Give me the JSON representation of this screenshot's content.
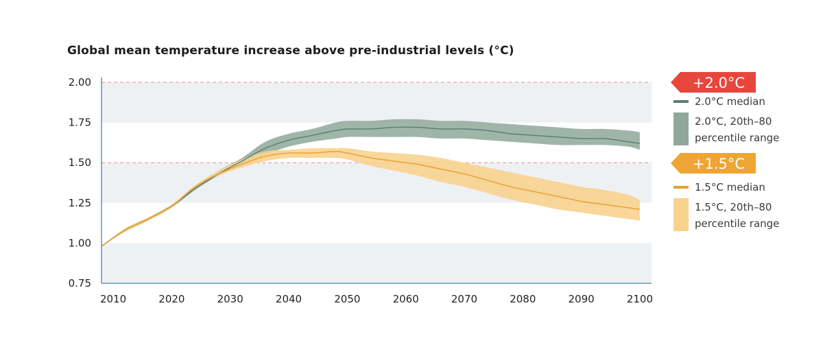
{
  "chart_data": {
    "type": "area",
    "title": "Global mean temperature increase above pre-industrial levels (°C)",
    "xlim": [
      2008,
      2102
    ],
    "ylim": [
      0.75,
      2.0
    ],
    "x_ticks": [
      2010,
      2020,
      2030,
      2040,
      2050,
      2060,
      2070,
      2080,
      2090,
      2100
    ],
    "y_ticks": [
      "0.75",
      "1.00",
      "1.25",
      "1.50",
      "1.75",
      "2.00"
    ],
    "y_tick_values": [
      0.75,
      1.0,
      1.25,
      1.5,
      1.75,
      2.0
    ],
    "grid": "alternating horizontal bands",
    "reference_lines": [
      {
        "y": 2.0,
        "label": "+2.0°C",
        "color": "#e8463d"
      },
      {
        "y": 1.5,
        "label": "+1.5°C",
        "color": "#eea533"
      }
    ],
    "x": [
      2008,
      2012,
      2016,
      2020,
      2024,
      2028,
      2032,
      2036,
      2040,
      2044,
      2048,
      2050,
      2054,
      2058,
      2062,
      2066,
      2070,
      2074,
      2078,
      2082,
      2086,
      2090,
      2094,
      2098,
      2100
    ],
    "series": [
      {
        "name": "2.0°C median",
        "color": "#587e6e",
        "band_color": "#8fa89a",
        "median": [
          0.98,
          1.08,
          1.15,
          1.23,
          1.34,
          1.43,
          1.51,
          1.59,
          1.64,
          1.67,
          1.7,
          1.71,
          1.71,
          1.72,
          1.72,
          1.71,
          1.71,
          1.7,
          1.68,
          1.67,
          1.66,
          1.65,
          1.65,
          1.63,
          1.62
        ],
        "lower": [
          0.98,
          1.07,
          1.14,
          1.22,
          1.33,
          1.42,
          1.49,
          1.55,
          1.6,
          1.63,
          1.65,
          1.66,
          1.66,
          1.66,
          1.66,
          1.65,
          1.65,
          1.64,
          1.63,
          1.62,
          1.61,
          1.61,
          1.61,
          1.6,
          1.58
        ],
        "upper": [
          0.98,
          1.09,
          1.16,
          1.24,
          1.35,
          1.45,
          1.53,
          1.63,
          1.68,
          1.71,
          1.75,
          1.76,
          1.76,
          1.77,
          1.77,
          1.76,
          1.76,
          1.75,
          1.74,
          1.73,
          1.72,
          1.71,
          1.71,
          1.7,
          1.69
        ]
      },
      {
        "name": "1.5°C median",
        "color": "#e6a02c",
        "band_color": "#f8d28f",
        "median": [
          0.98,
          1.08,
          1.15,
          1.23,
          1.35,
          1.43,
          1.49,
          1.54,
          1.56,
          1.56,
          1.57,
          1.56,
          1.53,
          1.51,
          1.49,
          1.46,
          1.43,
          1.39,
          1.35,
          1.32,
          1.29,
          1.26,
          1.24,
          1.22,
          1.21
        ],
        "lower": [
          0.98,
          1.07,
          1.14,
          1.22,
          1.34,
          1.42,
          1.47,
          1.51,
          1.53,
          1.53,
          1.53,
          1.52,
          1.48,
          1.45,
          1.42,
          1.38,
          1.35,
          1.31,
          1.27,
          1.24,
          1.21,
          1.19,
          1.17,
          1.15,
          1.14
        ],
        "upper": [
          0.98,
          1.09,
          1.16,
          1.24,
          1.36,
          1.45,
          1.52,
          1.57,
          1.58,
          1.59,
          1.59,
          1.59,
          1.57,
          1.56,
          1.55,
          1.53,
          1.5,
          1.47,
          1.44,
          1.41,
          1.38,
          1.35,
          1.33,
          1.3,
          1.27
        ]
      }
    ],
    "legend": {
      "placement": "right",
      "badge_2c": {
        "text": "+2.0°C",
        "color": "#e8463d"
      },
      "badge_15c": {
        "text": "+1.5°C",
        "color": "#eea533"
      },
      "entries_2c": [
        {
          "label": "2.0°C median",
          "kind": "line",
          "color": "#587e6e"
        },
        {
          "label_line1": "2.0°C, 20th–80",
          "label_line2": "percentile range",
          "kind": "band",
          "color": "#8fa89a"
        }
      ],
      "entries_15c": [
        {
          "label": "1.5°C median",
          "kind": "line",
          "color": "#e6a02c"
        },
        {
          "label_line1": "1.5°C, 20th–80",
          "label_line2": "percentile range",
          "kind": "band",
          "color": "#f8d28f"
        }
      ]
    }
  }
}
